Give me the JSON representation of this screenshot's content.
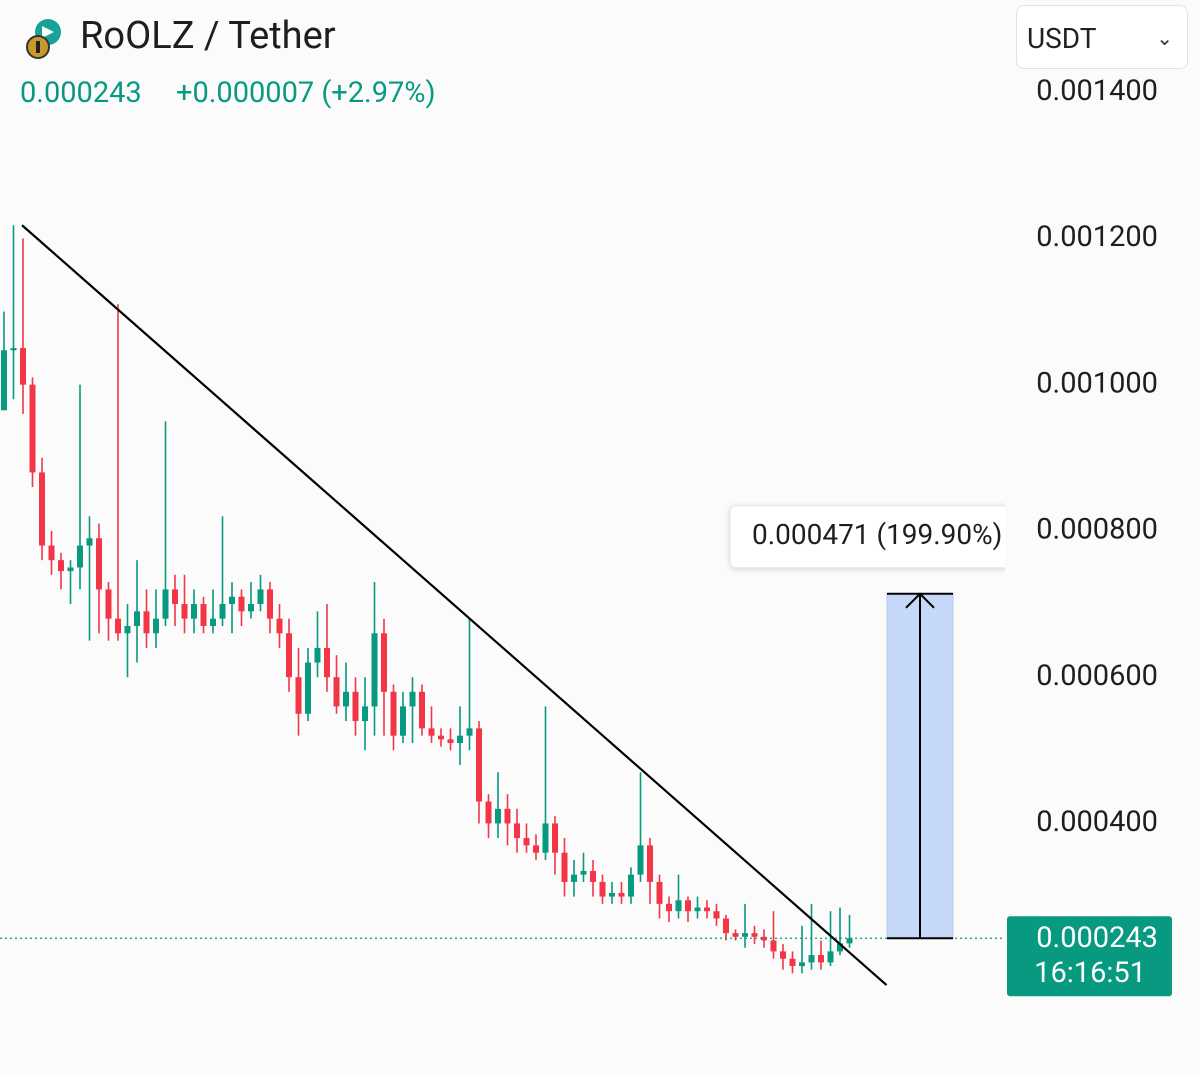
{
  "header": {
    "title": "RoOLZ / Tether",
    "price": "0.000243",
    "change": "+0.000007 (+2.97%)",
    "currency": "USDT"
  },
  "chart_data": {
    "type": "candlestick",
    "up_color": "#089981",
    "down_color": "#f23645",
    "ylim": [
      5.6e-05,
      0.001526
    ],
    "yticks": [
      {
        "value": 0.0004,
        "label": "0.000400"
      },
      {
        "value": 0.0006,
        "label": "0.000600"
      },
      {
        "value": 0.0008,
        "label": "0.000800"
      },
      {
        "value": 0.001,
        "label": "0.001000"
      },
      {
        "value": 0.0012,
        "label": "0.001200"
      },
      {
        "value": 0.0014,
        "label": "0.001400"
      }
    ],
    "open": [
      0.000965,
      0.001047,
      0.00105,
      0.001,
      0.00088,
      0.00078,
      0.00076,
      0.000745,
      0.00075,
      0.00078,
      0.00079,
      0.00072,
      0.00068,
      0.00066,
      0.00067,
      0.00069,
      0.00066,
      0.00068,
      0.00072,
      0.0007,
      0.00068,
      0.0007,
      0.00067,
      0.00068,
      0.0007,
      0.00071,
      0.00069,
      0.0007,
      0.00072,
      0.00068,
      0.00066,
      0.0006,
      0.00055,
      0.00062,
      0.00064,
      0.0006,
      0.00056,
      0.00058,
      0.00054,
      0.00056,
      0.00066,
      0.00058,
      0.00052,
      0.00056,
      0.00058,
      0.00053,
      0.00052,
      0.000515,
      0.00051,
      0.00052,
      0.00053,
      0.00043,
      0.0004,
      0.00042,
      0.0004,
      0.00038,
      0.00037,
      0.00036,
      0.0004,
      0.00036,
      0.00032,
      0.00033,
      0.000335,
      0.00032,
      0.0003,
      0.000305,
      0.0003,
      0.00033,
      0.00037,
      0.00032,
      0.00029,
      0.00028,
      0.000295,
      0.00028,
      0.000285,
      0.00028,
      0.00027,
      0.00025,
      0.000245,
      0.00025,
      0.000245,
      0.00024,
      0.000225,
      0.000215,
      0.000205,
      0.00021,
      0.00022,
      0.00021,
      0.000225,
      0.000236
    ],
    "high": [
      0.0011,
      0.001218,
      0.0012,
      0.00101,
      0.0009,
      0.0008,
      0.00077,
      0.00076,
      0.001,
      0.00082,
      0.00081,
      0.00073,
      0.00111,
      0.0007,
      0.00076,
      0.00072,
      0.00072,
      0.00095,
      0.00074,
      0.00074,
      0.00072,
      0.00071,
      0.00072,
      0.00082,
      0.00073,
      0.00072,
      0.00073,
      0.00074,
      0.00073,
      0.0007,
      0.00068,
      0.00064,
      0.00064,
      0.00069,
      0.0007,
      0.00063,
      0.00062,
      0.0006,
      0.0006,
      0.00073,
      0.00068,
      0.00059,
      0.00058,
      0.0006,
      0.00059,
      0.00056,
      0.00053,
      0.00053,
      0.00056,
      0.00068,
      0.00054,
      0.00044,
      0.00047,
      0.00044,
      0.00042,
      0.0004,
      0.000385,
      0.00056,
      0.00041,
      0.00038,
      0.00035,
      0.00036,
      0.00035,
      0.00033,
      0.00032,
      0.00032,
      0.00034,
      0.00047,
      0.00038,
      0.00033,
      0.0003,
      0.00033,
      0.0003,
      0.0003,
      0.000295,
      0.00029,
      0.000275,
      0.000255,
      0.00029,
      0.00026,
      0.000255,
      0.00028,
      0.000235,
      0.000225,
      0.00026,
      0.00029,
      0.00024,
      0.00028,
      0.000285,
      0.000275
    ],
    "low": [
      0.000965,
      0.00098,
      0.00096,
      0.00086,
      0.00076,
      0.00074,
      0.00072,
      0.0007,
      0.00072,
      0.00065,
      0.00066,
      0.00065,
      0.00065,
      0.0006,
      0.00062,
      0.00064,
      0.00064,
      0.00067,
      0.00067,
      0.00066,
      0.00066,
      0.00066,
      0.00066,
      0.00067,
      0.00066,
      0.00067,
      0.00068,
      0.00069,
      0.00066,
      0.00064,
      0.00058,
      0.00052,
      0.00054,
      0.0006,
      0.00058,
      0.00055,
      0.00054,
      0.00052,
      0.0005,
      0.00052,
      0.00052,
      0.0005,
      0.00051,
      0.00051,
      0.00052,
      0.00051,
      0.000505,
      0.0005,
      0.00048,
      0.0005,
      0.0004,
      0.00038,
      0.00038,
      0.00037,
      0.00036,
      0.00036,
      0.00035,
      0.00035,
      0.00033,
      0.0003,
      0.0003,
      0.00032,
      0.0003,
      0.00029,
      0.00029,
      0.00029,
      0.00029,
      0.00032,
      0.00029,
      0.00027,
      0.000265,
      0.00027,
      0.000265,
      0.00027,
      0.00027,
      0.00026,
      0.00024,
      0.00024,
      0.00023,
      0.000235,
      0.00023,
      0.000215,
      0.0002,
      0.000195,
      0.000195,
      0.0002,
      0.0002,
      0.000205,
      0.00022,
      0.00023
    ],
    "close": [
      0.001047,
      0.00105,
      0.001,
      0.00088,
      0.00078,
      0.00076,
      0.000745,
      0.00075,
      0.00078,
      0.00079,
      0.00072,
      0.00068,
      0.00066,
      0.00067,
      0.00069,
      0.00066,
      0.00068,
      0.00072,
      0.0007,
      0.00068,
      0.0007,
      0.00067,
      0.00068,
      0.0007,
      0.00071,
      0.00069,
      0.0007,
      0.00072,
      0.00068,
      0.00066,
      0.0006,
      0.00055,
      0.00062,
      0.00064,
      0.0006,
      0.00056,
      0.00058,
      0.00054,
      0.00056,
      0.00066,
      0.00058,
      0.00052,
      0.00056,
      0.00058,
      0.00053,
      0.00052,
      0.000515,
      0.00051,
      0.00052,
      0.00053,
      0.00043,
      0.0004,
      0.00042,
      0.0004,
      0.00038,
      0.00037,
      0.00036,
      0.0004,
      0.00036,
      0.00032,
      0.00033,
      0.000335,
      0.00032,
      0.0003,
      0.000305,
      0.0003,
      0.00033,
      0.00037,
      0.00032,
      0.00029,
      0.00028,
      0.000295,
      0.00028,
      0.000285,
      0.00028,
      0.00027,
      0.00025,
      0.000245,
      0.00025,
      0.000245,
      0.00024,
      0.000225,
      0.000215,
      0.000205,
      0.00021,
      0.00022,
      0.00021,
      0.000225,
      0.000236,
      0.000243
    ],
    "trendline": {
      "x": [
        1.9,
        92.9
      ],
      "y": [
        0.001218,
        0.000179
      ],
      "color": "#000000"
    },
    "measure": {
      "base": 0.000243,
      "value": 0.000471,
      "value_label": "0.000471 (199.90%)",
      "color": "#c5d8f8"
    },
    "last_price": {
      "value": 0.000243,
      "label": "0.000243",
      "countdown": "16:16:51",
      "color": "#089981"
    }
  }
}
